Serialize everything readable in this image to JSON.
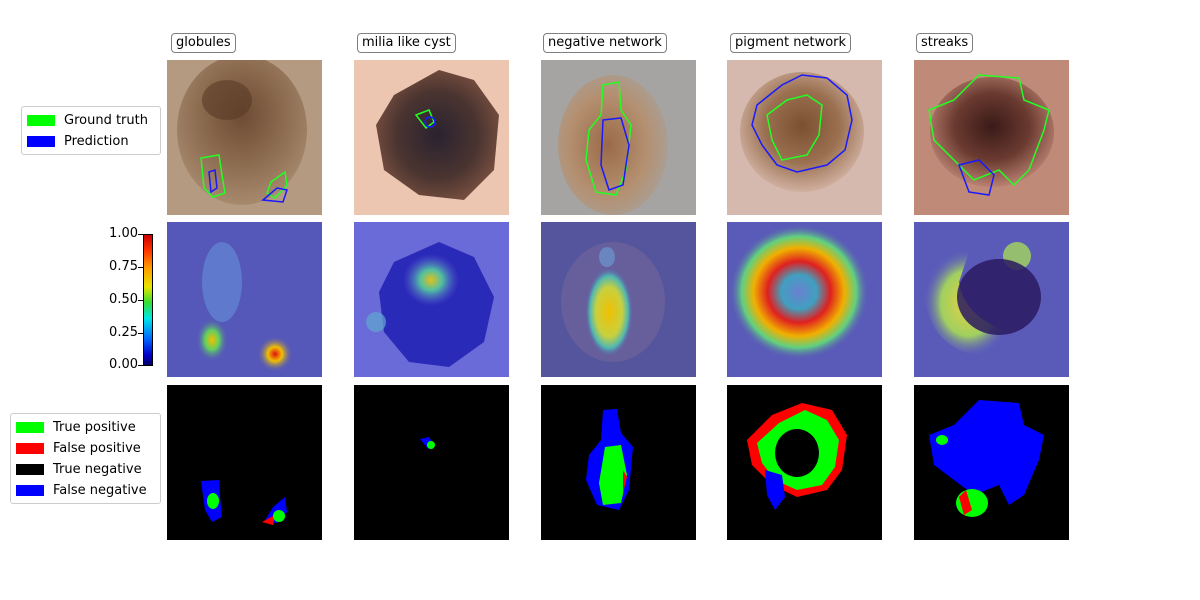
{
  "columns": [
    "globules",
    "milia like cyst",
    "negative network",
    "pigment network",
    "streaks"
  ],
  "legend_top": {
    "items": [
      {
        "label": "Ground truth",
        "color": "#00ff00"
      },
      {
        "label": "Prediction",
        "color": "#0000ff"
      }
    ]
  },
  "legend_bottom": {
    "items": [
      {
        "label": "True positive",
        "color": "#00ff00"
      },
      {
        "label": "False positive",
        "color": "#ff0000"
      },
      {
        "label": "True negative",
        "color": "#000000"
      },
      {
        "label": "False negative",
        "color": "#0000ff"
      }
    ]
  },
  "colorbar": {
    "ticks": [
      "1.00",
      "0.75",
      "0.50",
      "0.25",
      "0.00"
    ],
    "colormap": "jet"
  }
}
